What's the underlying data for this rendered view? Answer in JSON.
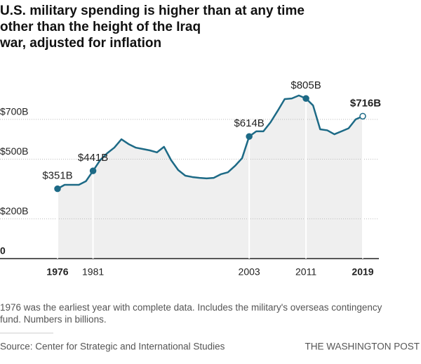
{
  "chart_data": {
    "type": "area-line",
    "title": "U.S. military spending is higher than at any time other than the height of the Iraq war, adjusted for inflation",
    "x": [
      1976,
      1977,
      1978,
      1979,
      1980,
      1981,
      1982,
      1983,
      1984,
      1985,
      1986,
      1987,
      1988,
      1989,
      1990,
      1991,
      1992,
      1993,
      1994,
      1995,
      1996,
      1997,
      1998,
      1999,
      2000,
      2001,
      2002,
      2003,
      2004,
      2005,
      2006,
      2007,
      2008,
      2009,
      2010,
      2011,
      2012,
      2013,
      2014,
      2015,
      2016,
      2017,
      2018,
      2019
    ],
    "values": [
      351,
      371,
      371,
      371,
      389,
      441,
      495,
      530,
      558,
      600,
      576,
      558,
      551,
      544,
      534,
      562,
      495,
      445,
      417,
      410,
      406,
      403,
      406,
      424,
      434,
      466,
      505,
      614,
      640,
      640,
      685,
      742,
      802,
      805,
      820,
      805,
      770,
      650,
      645,
      625,
      640,
      655,
      700,
      716
    ],
    "value_labels": [
      "$351B",
      null,
      null,
      null,
      null,
      "$441B",
      null,
      null,
      null,
      null,
      null,
      null,
      null,
      null,
      null,
      null,
      null,
      null,
      null,
      null,
      null,
      null,
      null,
      null,
      null,
      null,
      null,
      "$614B",
      null,
      null,
      null,
      null,
      null,
      null,
      null,
      "$805B",
      null,
      null,
      null,
      null,
      null,
      null,
      null,
      "$716B"
    ],
    "color": "#1d6a86",
    "xlim": [
      1976,
      2019
    ],
    "xticks": [
      1976,
      1981,
      2003,
      2011,
      2019
    ],
    "ylim": [
      0,
      850
    ],
    "yticks": [
      0,
      {
        "value": 200,
        "label": "$200B"
      },
      {
        "value": 500,
        "label": "$500B"
      },
      {
        "value": 700,
        "label": "$700B"
      }
    ],
    "grid": true,
    "note": "1976 was the earliest year with complete data. Includes the military's overseas contingency fund. Numbers in billions.",
    "source": "Source: Center for Strategic and International Studies",
    "credit": "THE WASHINGTON POST"
  }
}
